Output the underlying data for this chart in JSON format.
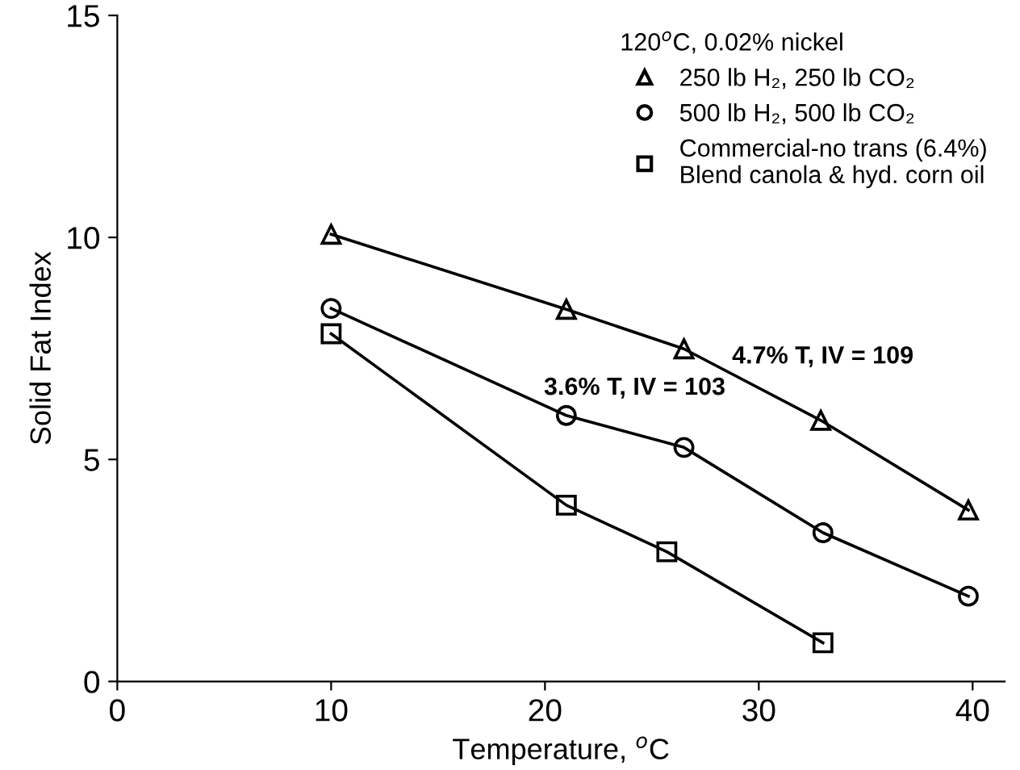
{
  "chart_data": {
    "type": "line",
    "xlabel": "Temperature, $^{o}$C",
    "ylabel": "Solid Fat Index",
    "legend_title": "120$^{o}$C, 0.02% nickel",
    "legend": "top right",
    "grid": false,
    "xlim": [
      0,
      41.5
    ],
    "xticks": [
      0,
      10,
      20,
      30,
      40
    ],
    "ylim": [
      0,
      15
    ],
    "yticks": [
      0,
      5,
      10,
      15
    ],
    "series": [
      {
        "name": "250 lb H₂, 250 lb CO₂",
        "color": "#000000",
        "marker": "triangle",
        "x": [
          10,
          21,
          26.5,
          32.9,
          39.8
        ],
        "values": [
          10.07,
          8.38,
          7.49,
          5.88,
          3.86
        ]
      },
      {
        "name": "500 lb H₂, 500 lb CO₂",
        "color": "#000000",
        "marker": "circle",
        "x": [
          10,
          21,
          26.5,
          33,
          39.8
        ],
        "values": [
          8.4,
          5.99,
          5.27,
          3.35,
          1.92
        ]
      },
      {
        "name": "Commercial-no trans (6.4%)\nBlend canola & hyd. corn oil",
        "color": "#000000",
        "marker": "square",
        "x": [
          10,
          21,
          25.7,
          33
        ],
        "values": [
          7.83,
          3.97,
          2.92,
          0.87
        ]
      }
    ],
    "annotations": [
      "4.7% T, IV = 109",
      "3.6% T, IV = 103"
    ]
  }
}
